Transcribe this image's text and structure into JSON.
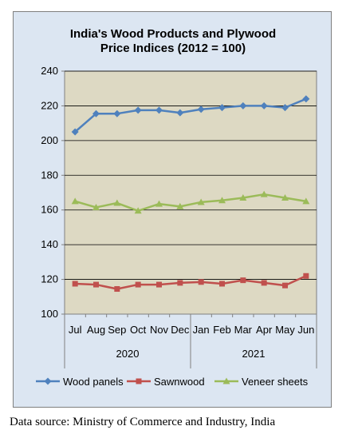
{
  "chart_data": {
    "type": "line",
    "title_lines": [
      "India's Wood Products and Plywood",
      "Price Indices (2012 = 100)"
    ],
    "categories": [
      "Jul",
      "Aug",
      "Sep",
      "Oct",
      "Nov",
      "Dec",
      "Jan",
      "Feb",
      "Mar",
      "Apr",
      "May",
      "Jun"
    ],
    "groups": [
      {
        "label": "2020",
        "months": 6
      },
      {
        "label": "2021",
        "months": 6
      }
    ],
    "ylim": [
      100,
      240
    ],
    "yticks": [
      100,
      120,
      140,
      160,
      180,
      200,
      220,
      240
    ],
    "grid": true,
    "plot_background": "#ddd9c3",
    "frame_background": "#dce6f2",
    "legend_position": "bottom",
    "series": [
      {
        "name": "Wood panels",
        "color": "#4f81bd",
        "marker": "diamond",
        "values": [
          205,
          215.5,
          215.5,
          217.5,
          217.5,
          216,
          218,
          219,
          220,
          220,
          219,
          224
        ]
      },
      {
        "name": "Sawnwood",
        "color": "#c0504d",
        "marker": "square",
        "values": [
          117.5,
          117,
          114.5,
          117,
          117,
          118,
          118.5,
          117.5,
          119.5,
          118,
          116.5,
          122
        ]
      },
      {
        "name": "Veneer sheets",
        "color": "#9bbb59",
        "marker": "triangle",
        "values": [
          165,
          161.5,
          164,
          159.5,
          163.5,
          162,
          164.5,
          165.5,
          167,
          169,
          167,
          165
        ]
      }
    ]
  },
  "footer": {
    "source": "Data source: Ministry of Commerce and Industry, India"
  }
}
